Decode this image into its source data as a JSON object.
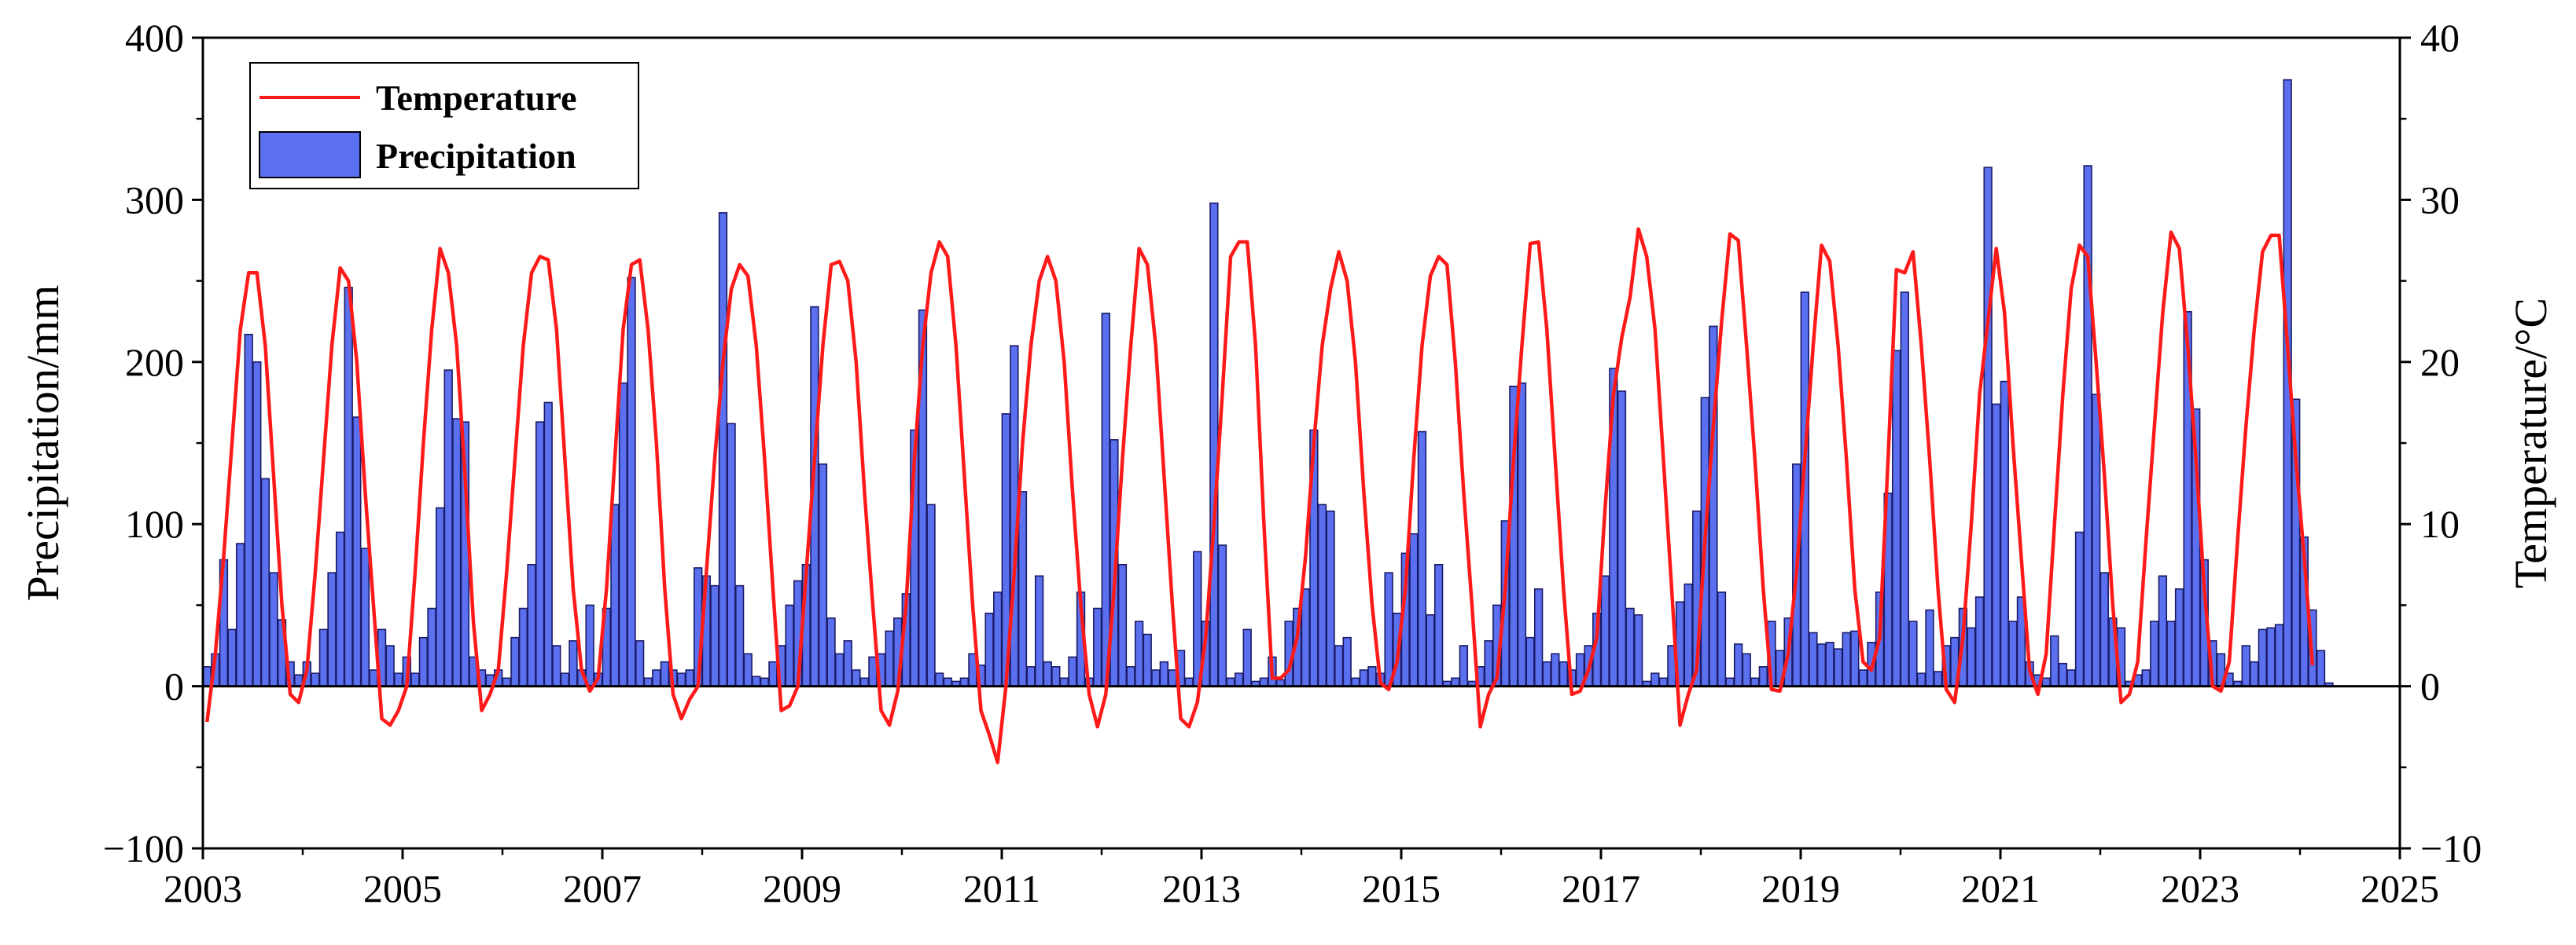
{
  "chart_data": {
    "type": "bar+line",
    "title": "",
    "x_ticks": [
      "2003",
      "2005",
      "2007",
      "2009",
      "2011",
      "2013",
      "2015",
      "2017",
      "2019",
      "2021",
      "2023",
      "2025"
    ],
    "x_range": [
      2003,
      2025
    ],
    "y_left": {
      "label": "Precipitation/mm",
      "range": [
        -100,
        400
      ],
      "ticks": [
        "−100",
        "0",
        "100",
        "200",
        "300",
        "400"
      ]
    },
    "y_right": {
      "label": "Temperature/°C",
      "range": [
        -10,
        40
      ],
      "ticks": [
        "−10",
        "0",
        "10",
        "20",
        "30",
        "40"
      ]
    },
    "legend": {
      "position": "top-left",
      "entries": [
        "Temperature",
        "Precipitation"
      ]
    },
    "colors": {
      "temperature": "#ff1a1a",
      "precipitation": "#5b70ef",
      "bar_edge": "#1a1a66"
    },
    "grid": false,
    "series": [
      {
        "name": "Precipitation",
        "type": "bar",
        "axis": "left",
        "start": "2003-01",
        "frequency": "monthly",
        "values": [
          12,
          20,
          78,
          35,
          88,
          217,
          200,
          128,
          70,
          41,
          15,
          7,
          15,
          8,
          35,
          70,
          95,
          246,
          166,
          85,
          10,
          35,
          25,
          8,
          18,
          8,
          30,
          48,
          110,
          195,
          165,
          163,
          18,
          10,
          7,
          10,
          5,
          30,
          48,
          75,
          163,
          175,
          25,
          8,
          28,
          10,
          50,
          8,
          48,
          112,
          187,
          252,
          28,
          5,
          10,
          15,
          10,
          8,
          10,
          73,
          68,
          62,
          292,
          162,
          62,
          20,
          6,
          5,
          15,
          25,
          50,
          65,
          75,
          234,
          137,
          42,
          20,
          28,
          10,
          5,
          18,
          20,
          34,
          42,
          57,
          158,
          232,
          112,
          8,
          5,
          3,
          5,
          20,
          13,
          45,
          58,
          168,
          210,
          120,
          12,
          68,
          15,
          12,
          5,
          18,
          58,
          5,
          48,
          230,
          152,
          75,
          12,
          40,
          32,
          10,
          15,
          10,
          22,
          5,
          83,
          40,
          298,
          87,
          5,
          8,
          35,
          3,
          5,
          18,
          4,
          40,
          48,
          60,
          158,
          112,
          108,
          25,
          30,
          5,
          10,
          12,
          8,
          70,
          45,
          82,
          94,
          157,
          44,
          75,
          3,
          5,
          25,
          3,
          12,
          28,
          50,
          102,
          185,
          187,
          30,
          60,
          15,
          20,
          15,
          10,
          20,
          25,
          45,
          68,
          196,
          182,
          48,
          44,
          3,
          8,
          5,
          25,
          52,
          63,
          108,
          178,
          222,
          58,
          5,
          26,
          20,
          5,
          12,
          40,
          22,
          42,
          137,
          243,
          33,
          26,
          27,
          23,
          33,
          34,
          10,
          27,
          58,
          119,
          207,
          243,
          40,
          8,
          47,
          9,
          25,
          30,
          48,
          36,
          55,
          320,
          174,
          188,
          40,
          55,
          15,
          7,
          5,
          31,
          14,
          10,
          95,
          321,
          180,
          70,
          42,
          36,
          3,
          7,
          10,
          40,
          68,
          40,
          60,
          231,
          171,
          78,
          28,
          20,
          8,
          3,
          25,
          15,
          35,
          36,
          38,
          374,
          177,
          92,
          47,
          22,
          2
        ]
      },
      {
        "name": "Temperature",
        "type": "line",
        "axis": "right",
        "start": "2003-01",
        "frequency": "monthly",
        "values": [
          -2.2,
          2,
          8,
          15,
          22,
          25.5,
          25.5,
          21,
          13,
          5,
          -0.5,
          -1,
          1,
          7,
          14,
          21,
          25.8,
          25,
          20,
          12,
          5,
          -2,
          -2.4,
          -1.5,
          0,
          7,
          15,
          22,
          27,
          25.5,
          21,
          13,
          4,
          -1.5,
          -0.5,
          1,
          7,
          14,
          21,
          25.5,
          26.5,
          26.3,
          22,
          14,
          6,
          1,
          -0.3,
          0.5,
          6,
          14,
          22,
          26,
          26.3,
          22,
          15,
          6,
          -0.5,
          -2,
          -0.8,
          0,
          7,
          14,
          20,
          24.5,
          26,
          25.3,
          21,
          14,
          6,
          -1.5,
          -1.2,
          0,
          7,
          14,
          21,
          26,
          26.2,
          25,
          20,
          12,
          5,
          -1.5,
          -2.4,
          -0.3,
          5,
          14,
          21,
          25.5,
          27.4,
          26.5,
          21,
          13,
          5,
          -1.5,
          -3,
          -4.7,
          0,
          7,
          15,
          21,
          25,
          26.5,
          25,
          20,
          12,
          5,
          -0.5,
          -2.5,
          -0.5,
          6,
          14,
          21,
          27,
          26,
          21,
          13,
          5,
          -2,
          -2.5,
          -1,
          3,
          10,
          18,
          26.5,
          27.4,
          27.4,
          21,
          10,
          0.5,
          0.5,
          1,
          3,
          8,
          15,
          21,
          24.5,
          26.8,
          25,
          20,
          12,
          5,
          0.2,
          -0.2,
          1.5,
          6,
          14,
          21,
          25.3,
          26.5,
          26,
          20,
          12,
          5,
          -2.5,
          -0.5,
          0.5,
          6,
          14,
          21,
          27.3,
          27.4,
          22,
          14,
          6,
          -0.5,
          -0.3,
          1,
          3,
          11,
          18,
          21.5,
          24,
          28.2,
          26.5,
          22,
          14,
          6,
          -2.4,
          -0.5,
          1,
          9,
          16,
          22.5,
          27.9,
          27.5,
          21,
          14,
          6,
          -0.2,
          -0.3,
          2,
          7,
          14,
          21,
          27.2,
          26.2,
          21,
          14,
          6,
          1.5,
          1,
          3,
          14,
          25.7,
          25.5,
          26.8,
          21,
          14,
          6,
          -0.2,
          -1,
          3,
          10,
          18,
          22.5,
          27,
          23,
          15,
          8,
          1,
          -0.5,
          2,
          10,
          18,
          24.5,
          27.2,
          26.5,
          20,
          13,
          5,
          -1,
          -0.5,
          1.5,
          9,
          16,
          23,
          28,
          27,
          21,
          14,
          6,
          0,
          -0.3,
          1.5,
          9,
          16,
          22,
          26.8,
          27.8,
          27.8,
          21,
          14,
          8,
          1.3
        ]
      }
    ]
  }
}
